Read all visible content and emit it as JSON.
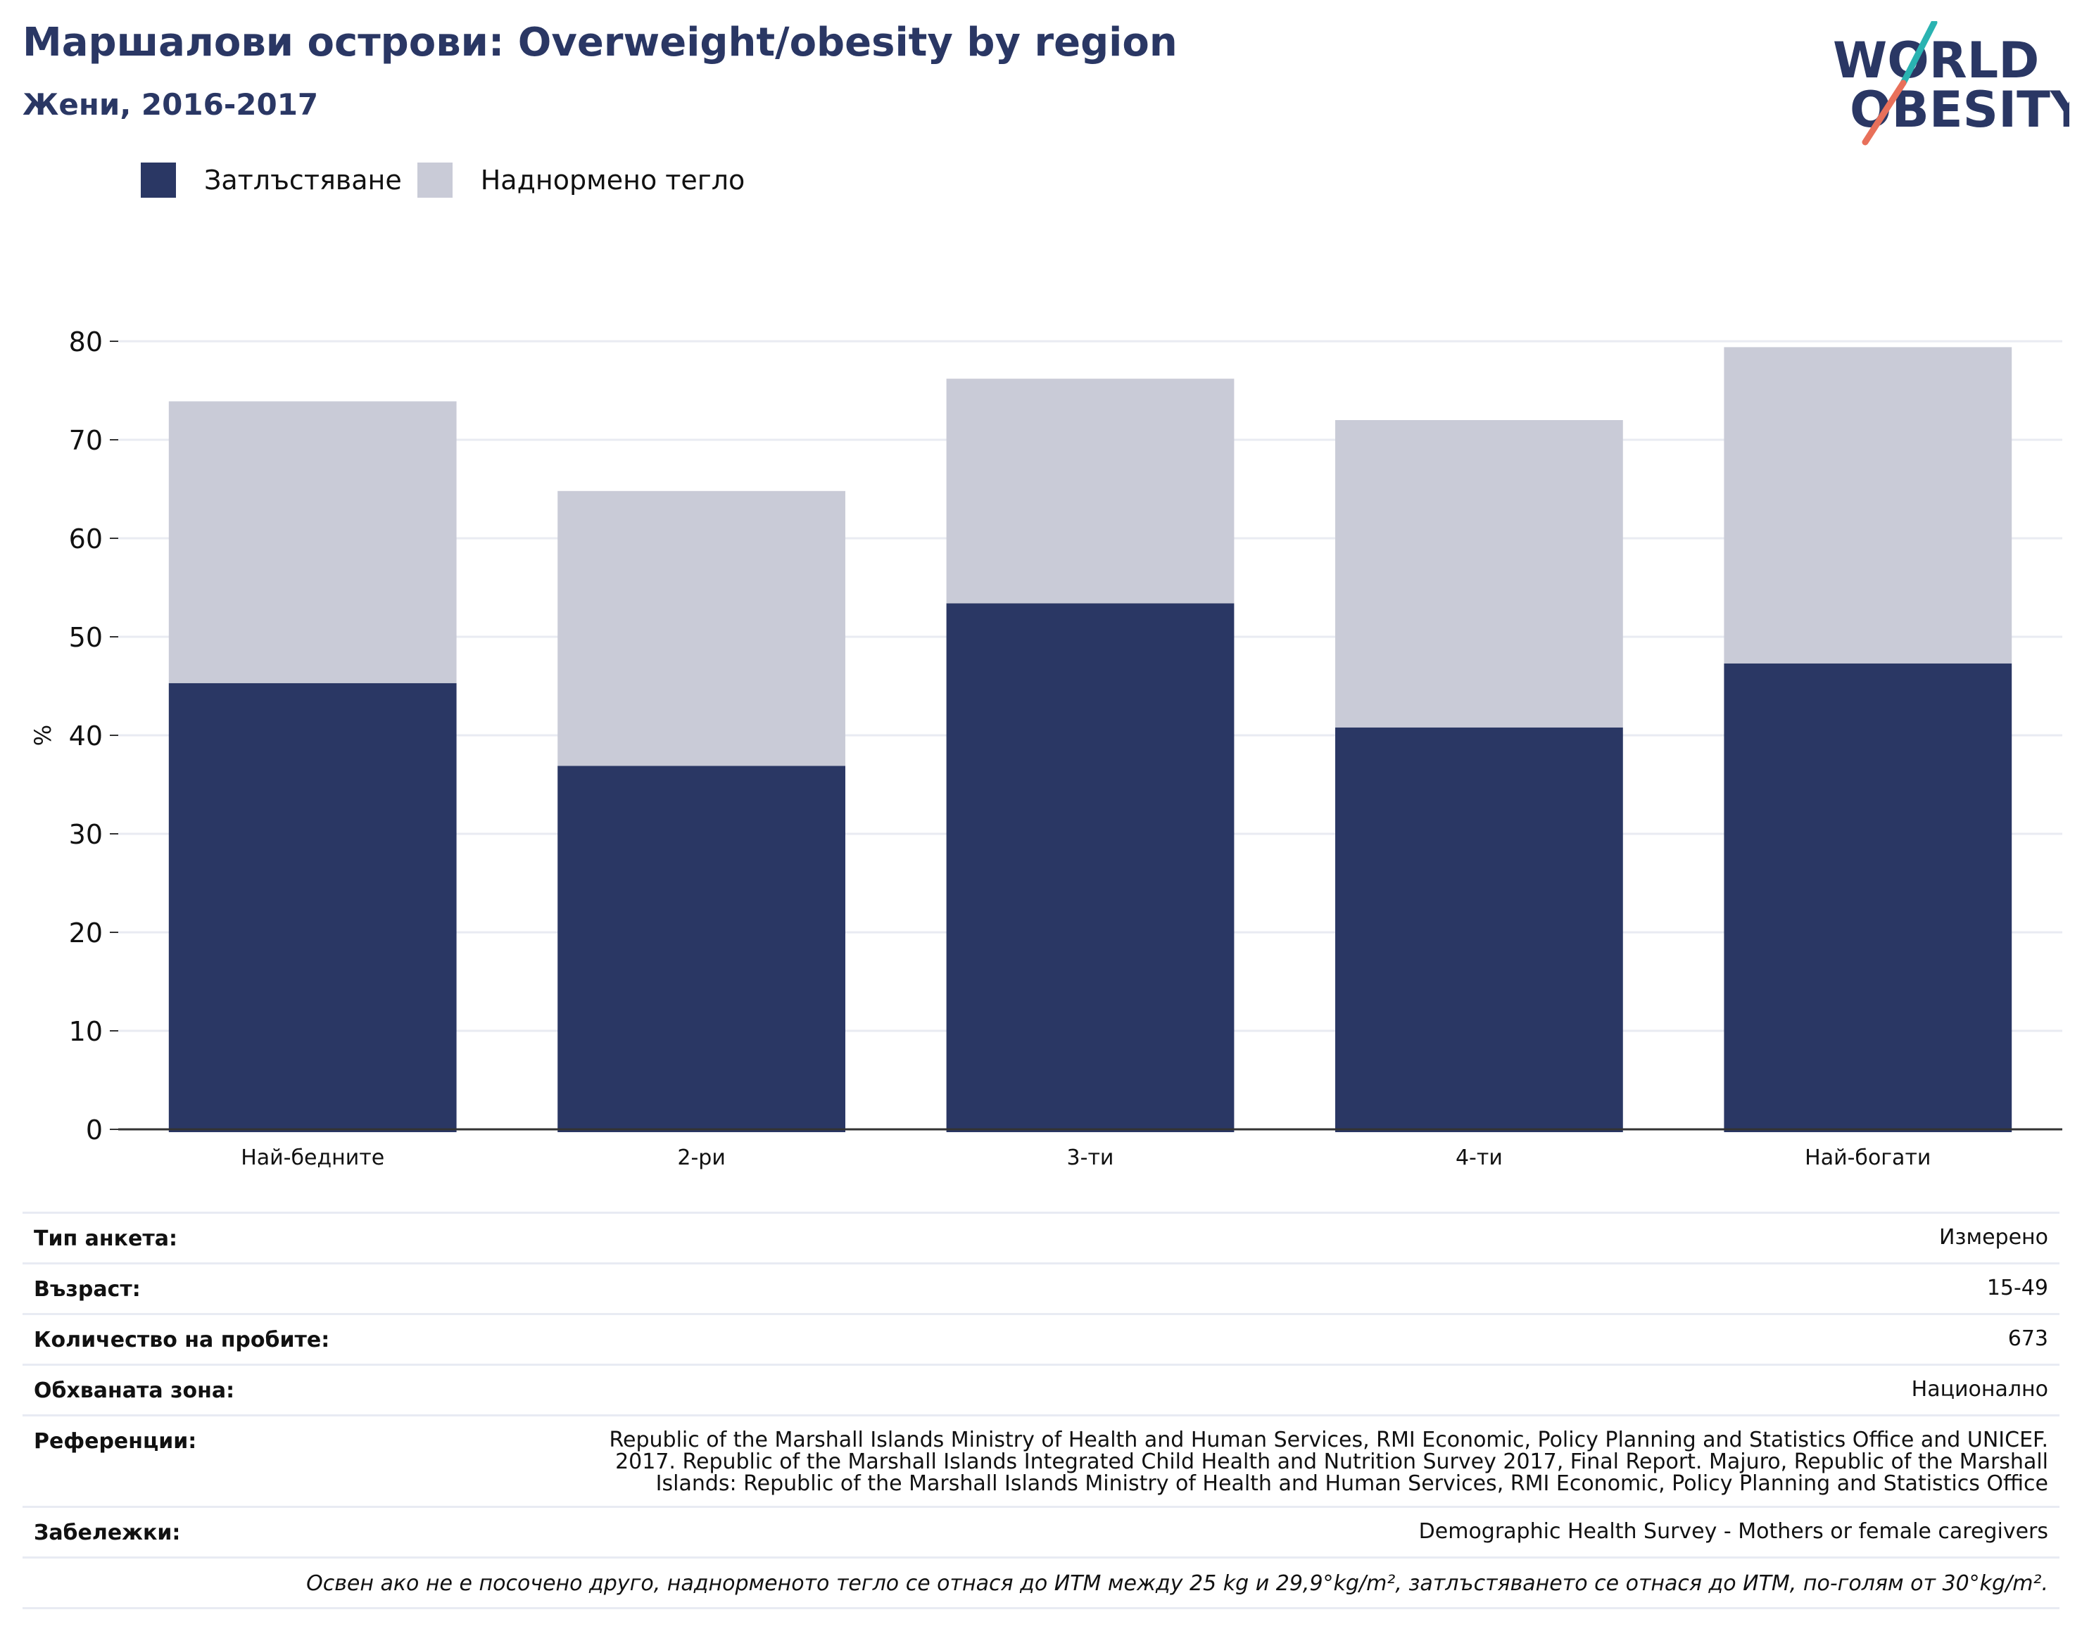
{
  "header": {
    "title": "Маршалови острови: Overweight/obesity by region",
    "subtitle": "Жени, 2016-2017"
  },
  "logo": {
    "line1": "WORLD",
    "line2": "OBESITY",
    "colors": {
      "text": "#2a3764",
      "slash_top": "#2ab3b1",
      "slash_bottom": "#e8705a"
    }
  },
  "legend": [
    {
      "label": "Затлъстяване",
      "color": "#2a3764"
    },
    {
      "label": "Наднормено тегло",
      "color": "#c9cbd7"
    }
  ],
  "chart_data": {
    "type": "bar",
    "stacked": true,
    "categories": [
      "Най-бедните",
      "2-ри",
      "3-ти",
      "4-ти",
      "Най-богати"
    ],
    "series": [
      {
        "name": "Затлъстяване",
        "color": "#2a3764",
        "values": [
          45.3,
          36.9,
          53.4,
          40.8,
          47.3
        ]
      },
      {
        "name": "Наднормено тегло",
        "color": "#c9cbd7",
        "values": [
          28.6,
          27.9,
          22.8,
          31.2,
          32.1
        ]
      }
    ],
    "ylabel": "%",
    "ylim": [
      0,
      80
    ],
    "yticks": [
      0,
      10,
      20,
      30,
      40,
      50,
      60,
      70,
      80
    ],
    "grid": true
  },
  "info": {
    "rows": [
      {
        "label": "Тип анкета:",
        "value": "Измерено"
      },
      {
        "label": "Възраст:",
        "value": "15-49"
      },
      {
        "label": "Количество на пробите:",
        "value": "673"
      },
      {
        "label": "Обхваната зона:",
        "value": "Национално"
      },
      {
        "label": "Референции:",
        "value_lines": [
          "Republic of the Marshall Islands Ministry of Health and Human Services, RMI Economic, Policy Planning and Statistics Office and UNICEF.",
          "2017. Republic of the Marshall Islands Integrated Child Health and Nutrition Survey 2017, Final Report. Majuro, Republic of the Marshall",
          "Islands: Republic of the Marshall Islands Ministry of Health and Human Services, RMI Economic, Policy Planning and Statistics Office"
        ]
      },
      {
        "label": "Забележки:",
        "value": "Demographic Health Survey - Mothers or female caregivers"
      }
    ],
    "footnote": "Освен ако не е посочено друго, наднорменото тегло се отнася до ИТМ между 25 kg и 29,9°kg/m², затлъстяването се отнася до ИТМ, по-голям от 30°kg/m²."
  }
}
